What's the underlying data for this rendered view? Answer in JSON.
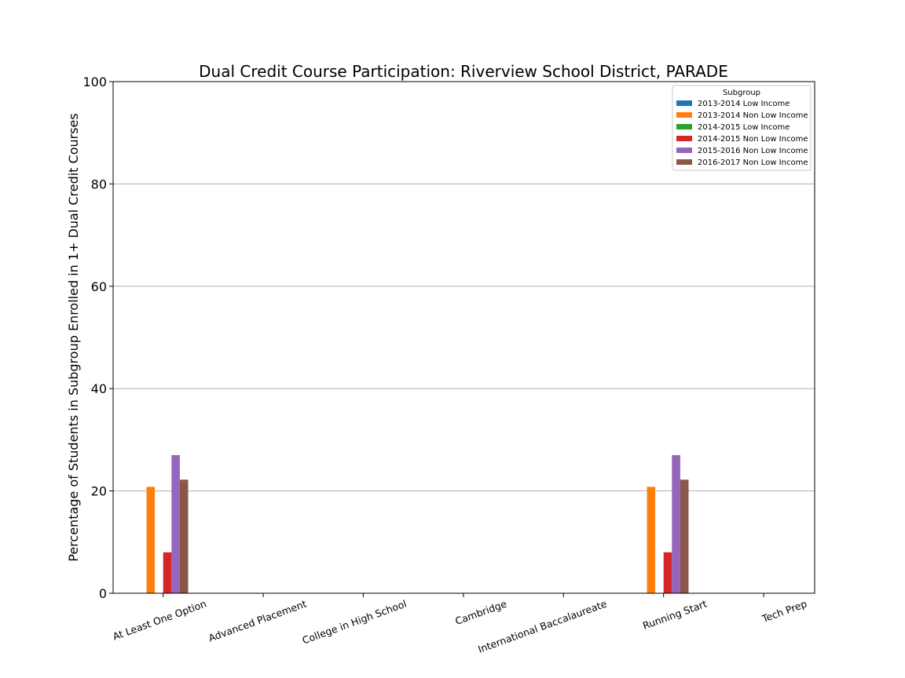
{
  "chart_data": {
    "type": "bar",
    "title": "Dual Credit Course Participation: Riverview School District, PARADE",
    "xlabel": "",
    "ylabel": "Percentage of Students in Subgroup Enrolled in 1+ Dual Credit Courses",
    "ylim": [
      0,
      100
    ],
    "yticks": [
      0,
      20,
      40,
      60,
      80,
      100
    ],
    "grid": "horizontal",
    "legend_title": "Subgroup",
    "legend_position": "top-right",
    "categories": [
      "At Least One Option",
      "Advanced Placement",
      "College in High School",
      "Cambridge",
      "International Baccalaureate",
      "Running Start",
      "Tech Prep"
    ],
    "series": [
      {
        "name": "2013-2014 Low Income",
        "color": "#1f77b4",
        "values": [
          0,
          0,
          0,
          0,
          0,
          0,
          0
        ]
      },
      {
        "name": "2013-2014 Non Low Income",
        "color": "#ff7f0e",
        "values": [
          20.8,
          0,
          0,
          0,
          0,
          20.8,
          0
        ]
      },
      {
        "name": "2014-2015 Low Income",
        "color": "#2ca02c",
        "values": [
          0,
          0,
          0,
          0,
          0,
          0,
          0
        ]
      },
      {
        "name": "2014-2015 Non Low Income",
        "color": "#d62728",
        "values": [
          8.0,
          0,
          0,
          0,
          0,
          8.0,
          0
        ]
      },
      {
        "name": "2015-2016 Non Low Income",
        "color": "#9467bd",
        "values": [
          27.0,
          0,
          0,
          0,
          0,
          27.0,
          0
        ]
      },
      {
        "name": "2016-2017 Non Low Income",
        "color": "#8c564b",
        "values": [
          22.2,
          0,
          0,
          0,
          0,
          22.2,
          0
        ]
      }
    ]
  }
}
